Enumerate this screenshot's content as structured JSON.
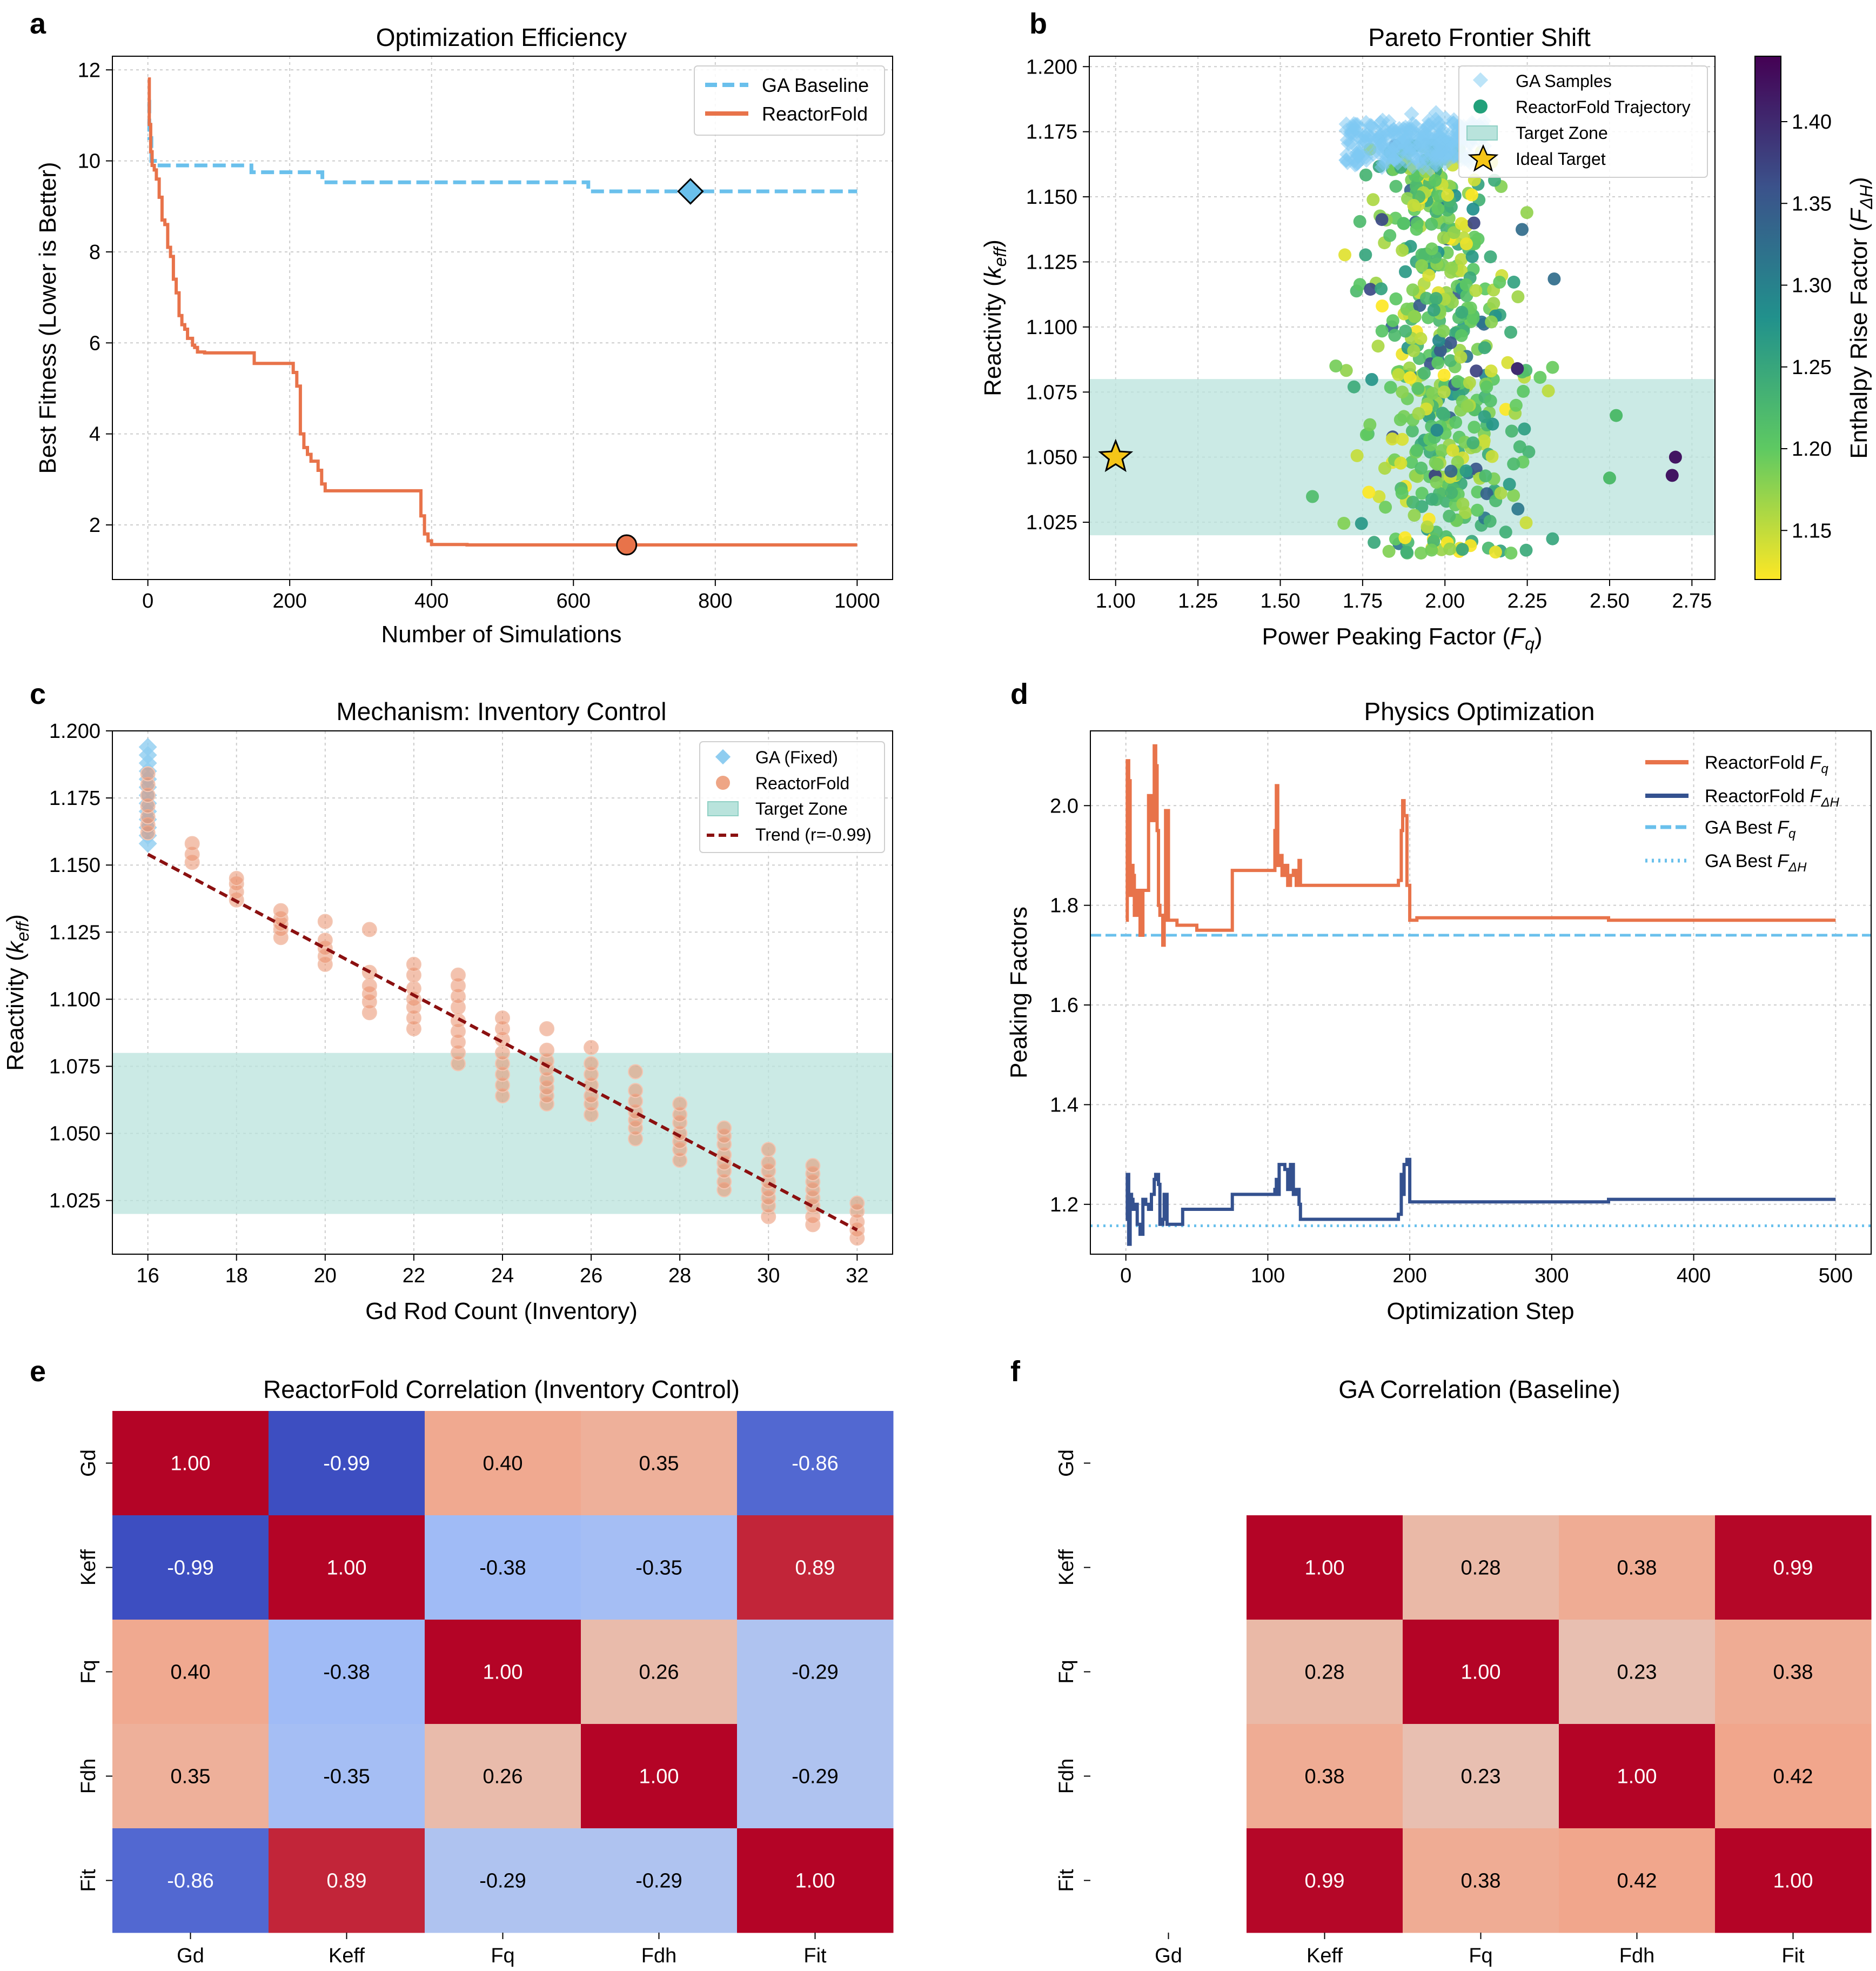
{
  "panels": {
    "a": {
      "letter": "a",
      "title": "Optimization Efficiency",
      "xlabel": "Number of Simulations",
      "ylabel": "Best Fitness (Lower is Better)"
    },
    "b": {
      "letter": "b",
      "title": "Pareto Frontier Shift",
      "xlabel": "Power Peaking Factor (",
      "xlabel_var": "F",
      "xlabel_sub": "q",
      "xlabel_end": ")",
      "ylabel": "Reactivity (",
      "ylabel_var": "k",
      "ylabel_sub": "eff",
      "ylabel_end": ")",
      "colorbar_label": "Enthalpy Rise Factor (",
      "colorbar_var": "F",
      "colorbar_sub": "ΔH",
      "colorbar_end": ")"
    },
    "c": {
      "letter": "c",
      "title": "Mechanism: Inventory Control",
      "xlabel": "Gd Rod Count (Inventory)",
      "ylabel": "Reactivity (",
      "ylabel_var": "k",
      "ylabel_sub": "eff",
      "ylabel_end": ")"
    },
    "d": {
      "letter": "d",
      "title": "Physics Optimization",
      "xlabel": "Optimization Step",
      "ylabel": "Peaking Factors"
    },
    "e": {
      "letter": "e",
      "title": "ReactorFold Correlation (Inventory Control)"
    },
    "f": {
      "letter": "f",
      "title": "GA Correlation (Baseline)"
    }
  },
  "colors": {
    "orange": "#e8734a",
    "blue": "#6ac0ec",
    "navy": "#34518f",
    "zone": "#b9e3dc",
    "trend": "#8b1010",
    "gold": "#f5c518"
  },
  "chart_data": [
    {
      "id": "a",
      "type": "line",
      "title": "Optimization Efficiency",
      "xlabel": "Number of Simulations",
      "ylabel": "Best Fitness (Lower is Better)",
      "xlim": [
        -50,
        1050
      ],
      "ylim": [
        0.8,
        12.3
      ],
      "xticks": [
        "0",
        "200",
        "400",
        "600",
        "800",
        "1000"
      ],
      "yticks": [
        "2",
        "4",
        "6",
        "8",
        "10",
        "12"
      ],
      "legend": {
        "position": "top-right",
        "entries": [
          "GA Baseline",
          "ReactorFold"
        ]
      },
      "series": [
        {
          "name": "GA Baseline",
          "style": "dashed",
          "color": "#6ac0ec",
          "x": [
            0,
            2,
            5,
            10,
            145,
            146,
            245,
            246,
            620,
            621,
            1000
          ],
          "y": [
            11.3,
            10.5,
            10.0,
            9.9,
            9.9,
            9.75,
            9.75,
            9.53,
            9.53,
            9.33,
            9.33
          ]
        },
        {
          "name": "ReactorFold",
          "style": "solid",
          "color": "#e8734a",
          "x": [
            0,
            2,
            4,
            6,
            9,
            12,
            16,
            20,
            24,
            28,
            32,
            36,
            40,
            44,
            48,
            52,
            56,
            60,
            63,
            66,
            70,
            80,
            130,
            150,
            200,
            205,
            210,
            215,
            220,
            225,
            230,
            240,
            245,
            250,
            260,
            380,
            385,
            390,
            395,
            400,
            450,
            1000
          ],
          "y": [
            11.8,
            10.8,
            10.2,
            9.9,
            9.8,
            9.6,
            9.2,
            8.7,
            8.6,
            8.1,
            7.9,
            7.4,
            7.1,
            6.6,
            6.4,
            6.3,
            6.1,
            6.1,
            5.95,
            5.9,
            5.8,
            5.78,
            5.78,
            5.55,
            5.55,
            5.35,
            5.05,
            4.0,
            3.7,
            3.55,
            3.4,
            3.2,
            2.9,
            2.75,
            2.75,
            2.75,
            2.2,
            1.8,
            1.65,
            1.57,
            1.56,
            1.56
          ]
        }
      ],
      "markers": [
        {
          "name": "GA Baseline best",
          "shape": "diamond",
          "x": 765,
          "y": 9.33,
          "color": "#6ac0ec"
        },
        {
          "name": "ReactorFold best",
          "shape": "circle",
          "x": 675,
          "y": 1.56,
          "color": "#e8734a"
        }
      ]
    },
    {
      "id": "b",
      "type": "scatter",
      "title": "Pareto Frontier Shift",
      "xlim": [
        0.92,
        2.82
      ],
      "ylim": [
        1.003,
        1.204
      ],
      "xticks": [
        "1.00",
        "1.25",
        "1.50",
        "1.75",
        "2.00",
        "2.25",
        "2.50",
        "2.75"
      ],
      "yticks": [
        "1.025",
        "1.050",
        "1.075",
        "1.100",
        "1.125",
        "1.150",
        "1.175",
        "1.200"
      ],
      "target_zone": [
        1.02,
        1.08
      ],
      "colorbar": {
        "min": 1.12,
        "max": 1.44,
        "ticks": [
          "1.15",
          "1.20",
          "1.25",
          "1.30",
          "1.35",
          "1.40"
        ],
        "colormap": "viridis"
      },
      "legend": {
        "position": "top-right",
        "entries": [
          "GA Samples",
          "ReactorFold Trajectory",
          "Target Zone",
          "Ideal Target"
        ]
      },
      "ga_samples": {
        "x_range": [
          1.7,
          2.13
        ],
        "y_range": [
          1.163,
          1.178
        ],
        "count": 260
      },
      "reactorfold": {
        "x_center": 2.0,
        "x_spread": 0.12,
        "y_range": [
          1.013,
          1.17
        ],
        "count": 520
      },
      "outliers": [
        {
          "x": 2.7,
          "y": 1.05,
          "fdh": 1.42
        },
        {
          "x": 2.69,
          "y": 1.043,
          "fdh": 1.42
        },
        {
          "x": 2.5,
          "y": 1.042,
          "fdh": 1.22
        },
        {
          "x": 2.52,
          "y": 1.066,
          "fdh": 1.22
        },
        {
          "x": 2.22,
          "y": 1.084,
          "fdh": 1.4
        }
      ],
      "ideal_target": {
        "x": 1.0,
        "y": 1.05
      }
    },
    {
      "id": "c",
      "type": "scatter",
      "title": "Mechanism: Inventory Control",
      "xlabel": "Gd Rod Count (Inventory)",
      "xlim": [
        15.2,
        32.8
      ],
      "ylim": [
        1.005,
        1.2
      ],
      "xticks": [
        "16",
        "18",
        "20",
        "22",
        "24",
        "26",
        "28",
        "30",
        "32"
      ],
      "yticks": [
        "1.025",
        "1.050",
        "1.075",
        "1.100",
        "1.125",
        "1.150",
        "1.175",
        "1.200"
      ],
      "target_zone": [
        1.02,
        1.08
      ],
      "legend": {
        "position": "top-right",
        "entries": [
          "GA (Fixed)",
          "ReactorFold",
          "Target Zone",
          "Trend (r=-0.99)"
        ]
      },
      "ga_fixed": {
        "x": 16,
        "y_range": [
          1.158,
          1.194
        ]
      },
      "reactorfold_groups": [
        {
          "x": 16,
          "y": [
            1.162,
            1.165,
            1.168,
            1.172,
            1.176,
            1.18,
            1.184
          ]
        },
        {
          "x": 17,
          "y": [
            1.151,
            1.154,
            1.158
          ]
        },
        {
          "x": 18,
          "y": [
            1.137,
            1.14,
            1.143,
            1.145
          ]
        },
        {
          "x": 19,
          "y": [
            1.123,
            1.126,
            1.128,
            1.13,
            1.133
          ]
        },
        {
          "x": 20,
          "y": [
            1.113,
            1.116,
            1.119,
            1.122,
            1.129
          ]
        },
        {
          "x": 21,
          "y": [
            1.095,
            1.099,
            1.102,
            1.105,
            1.11,
            1.126
          ]
        },
        {
          "x": 22,
          "y": [
            1.089,
            1.093,
            1.097,
            1.1,
            1.104,
            1.109,
            1.113
          ]
        },
        {
          "x": 23,
          "y": [
            1.076,
            1.08,
            1.084,
            1.088,
            1.092,
            1.097,
            1.101,
            1.105,
            1.109
          ]
        },
        {
          "x": 24,
          "y": [
            1.064,
            1.068,
            1.072,
            1.076,
            1.08,
            1.085,
            1.089,
            1.093
          ]
        },
        {
          "x": 25,
          "y": [
            1.061,
            1.064,
            1.067,
            1.07,
            1.074,
            1.077,
            1.081,
            1.089
          ]
        },
        {
          "x": 26,
          "y": [
            1.057,
            1.061,
            1.064,
            1.068,
            1.072,
            1.076,
            1.082
          ]
        },
        {
          "x": 27,
          "y": [
            1.048,
            1.052,
            1.055,
            1.058,
            1.062,
            1.066,
            1.073
          ]
        },
        {
          "x": 28,
          "y": [
            1.04,
            1.044,
            1.047,
            1.05,
            1.054,
            1.057,
            1.061
          ]
        },
        {
          "x": 29,
          "y": [
            1.029,
            1.032,
            1.036,
            1.039,
            1.042,
            1.046,
            1.049,
            1.052
          ]
        },
        {
          "x": 30,
          "y": [
            1.019,
            1.023,
            1.026,
            1.029,
            1.032,
            1.036,
            1.039,
            1.044
          ]
        },
        {
          "x": 31,
          "y": [
            1.016,
            1.019,
            1.023,
            1.026,
            1.029,
            1.032,
            1.035,
            1.038
          ]
        },
        {
          "x": 32,
          "y": [
            1.011,
            1.014,
            1.017,
            1.021,
            1.024
          ]
        }
      ],
      "trend": {
        "x": [
          16,
          32
        ],
        "y": [
          1.154,
          1.014
        ]
      }
    },
    {
      "id": "d",
      "type": "line",
      "title": "Physics Optimization",
      "xlabel": "Optimization Step",
      "ylabel": "Peaking Factors",
      "xlim": [
        -25,
        525
      ],
      "ylim": [
        1.1,
        2.15
      ],
      "xticks": [
        "0",
        "100",
        "200",
        "300",
        "400",
        "500"
      ],
      "yticks": [
        "1.2",
        "1.4",
        "1.6",
        "1.8",
        "2.0"
      ],
      "legend": {
        "position": "top-right",
        "entries": [
          "ReactorFold F_q",
          "ReactorFold F_ΔH",
          "GA Best F_q",
          "GA Best F_ΔH"
        ]
      },
      "series": [
        {
          "name": "ReactorFold F_q",
          "color": "#e8734a",
          "x": [
            0,
            1,
            2,
            3,
            4,
            5,
            6,
            8,
            10,
            12,
            14,
            16,
            18,
            20,
            21,
            22,
            23,
            24,
            26,
            27,
            28,
            29,
            30,
            32,
            34,
            36,
            40,
            50,
            73,
            75,
            103,
            104,
            105,
            106,
            107,
            108,
            110,
            112,
            114,
            116,
            118,
            120,
            122,
            123,
            125,
            180,
            190,
            192,
            194,
            195,
            196,
            198,
            200,
            205,
            330,
            340,
            500
          ],
          "y": [
            1.77,
            2.09,
            2.05,
            1.82,
            1.88,
            1.86,
            1.78,
            1.83,
            1.74,
            1.83,
            1.83,
            2.02,
            1.97,
            2.12,
            2.08,
            1.95,
            1.8,
            1.78,
            1.72,
            1.77,
            1.99,
            1.99,
            1.77,
            1.77,
            1.77,
            1.76,
            1.76,
            1.75,
            1.75,
            1.87,
            1.87,
            1.87,
            1.95,
            2.04,
            1.88,
            1.9,
            1.86,
            1.88,
            1.84,
            1.86,
            1.87,
            1.84,
            1.89,
            1.84,
            1.84,
            1.84,
            1.84,
            1.85,
            1.95,
            2.01,
            1.98,
            1.84,
            1.77,
            1.775,
            1.775,
            1.77,
            1.77
          ]
        },
        {
          "name": "ReactorFold F_ΔH",
          "color": "#34518f",
          "x": [
            0,
            1,
            2,
            3,
            4,
            5,
            6,
            8,
            10,
            12,
            14,
            16,
            18,
            20,
            21,
            22,
            23,
            24,
            26,
            27,
            28,
            29,
            30,
            32,
            34,
            36,
            40,
            50,
            73,
            75,
            103,
            104,
            105,
            106,
            107,
            108,
            110,
            112,
            114,
            116,
            118,
            120,
            122,
            123,
            125,
            180,
            190,
            192,
            194,
            195,
            196,
            198,
            200,
            205,
            330,
            340,
            500
          ],
          "y": [
            1.17,
            1.26,
            1.12,
            1.22,
            1.21,
            1.19,
            1.2,
            1.16,
            1.14,
            1.21,
            1.2,
            1.19,
            1.22,
            1.25,
            1.26,
            1.26,
            1.24,
            1.16,
            1.17,
            1.22,
            1.22,
            1.16,
            1.16,
            1.16,
            1.16,
            1.16,
            1.19,
            1.19,
            1.19,
            1.22,
            1.22,
            1.22,
            1.23,
            1.25,
            1.22,
            1.28,
            1.28,
            1.27,
            1.23,
            1.28,
            1.22,
            1.23,
            1.2,
            1.17,
            1.17,
            1.17,
            1.17,
            1.18,
            1.26,
            1.22,
            1.28,
            1.29,
            1.205,
            1.205,
            1.205,
            1.21,
            1.21
          ]
        },
        {
          "name": "GA Best F_q",
          "color": "#6ac0ec",
          "style": "dashed",
          "y_const": 1.74
        },
        {
          "name": "GA Best F_ΔH",
          "color": "#6ac0ec",
          "style": "dotted",
          "y_const": 1.157
        }
      ]
    },
    {
      "id": "e",
      "type": "heatmap",
      "title": "ReactorFold Correlation (Inventory Control)",
      "labels": [
        "Gd",
        "Keff",
        "Fq",
        "Fdh",
        "Fit"
      ],
      "matrix": [
        [
          1.0,
          -0.99,
          0.4,
          0.35,
          -0.86
        ],
        [
          -0.99,
          1.0,
          -0.38,
          -0.35,
          0.89
        ],
        [
          0.4,
          -0.38,
          1.0,
          0.26,
          -0.29
        ],
        [
          0.35,
          -0.35,
          0.26,
          1.0,
          -0.29
        ],
        [
          -0.86,
          0.89,
          -0.29,
          -0.29,
          1.0
        ]
      ],
      "cell_text": [
        [
          "1.00",
          "-0.99",
          "0.40",
          "0.35",
          "-0.86"
        ],
        [
          "-0.99",
          "1.00",
          "-0.38",
          "-0.35",
          "0.89"
        ],
        [
          "0.40",
          "-0.38",
          "1.00",
          "0.26",
          "-0.29"
        ],
        [
          "0.35",
          "-0.35",
          "0.26",
          "1.00",
          "-0.29"
        ],
        [
          "-0.86",
          "0.89",
          "-0.29",
          "-0.29",
          "1.00"
        ]
      ],
      "colormap": "coolwarm"
    },
    {
      "id": "f",
      "type": "heatmap",
      "title": "GA Correlation (Baseline)",
      "labels": [
        "Gd",
        "Keff",
        "Fq",
        "Fdh",
        "Fit"
      ],
      "matrix": [
        [
          null,
          null,
          null,
          null,
          null
        ],
        [
          null,
          1.0,
          0.28,
          0.38,
          0.99
        ],
        [
          null,
          0.28,
          1.0,
          0.23,
          0.38
        ],
        [
          null,
          0.38,
          0.23,
          1.0,
          0.42
        ],
        [
          null,
          0.99,
          0.38,
          0.42,
          1.0
        ]
      ],
      "cell_text": [
        [
          "",
          "",
          "",
          "",
          ""
        ],
        [
          "",
          "1.00",
          "0.28",
          "0.38",
          "0.99"
        ],
        [
          "",
          "0.28",
          "1.00",
          "0.23",
          "0.38"
        ],
        [
          "",
          "0.38",
          "0.23",
          "1.00",
          "0.42"
        ],
        [
          "",
          "0.99",
          "0.38",
          "0.42",
          "1.00"
        ]
      ],
      "colormap": "coolwarm"
    }
  ]
}
